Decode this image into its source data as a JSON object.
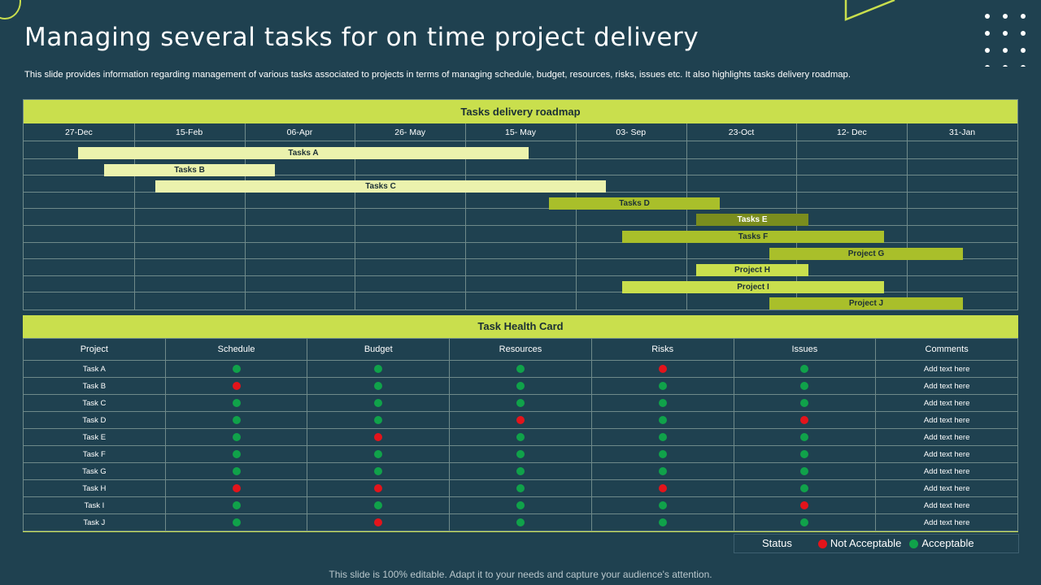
{
  "title": "Managing several tasks for on time project delivery",
  "subtitle": "This slide provides information regarding management of various tasks associated to projects in terms of managing schedule, budget, resources, risks, issues etc. It also highlights tasks delivery roadmap.",
  "roadmap": {
    "heading": "Tasks delivery roadmap",
    "dates": [
      "27-Dec",
      "15-Feb",
      "06-Apr",
      "26- May",
      "15- May",
      "03- Sep",
      "23-Oct",
      "12- Dec",
      "31-Jan"
    ],
    "tasks": [
      {
        "label": "Tasks A",
        "start_col": 0.49,
        "end_col": 4.57,
        "style": "light"
      },
      {
        "label": "Tasks B",
        "start_col": 0.73,
        "end_col": 2.28,
        "style": "light"
      },
      {
        "label": "Tasks C",
        "start_col": 1.19,
        "end_col": 5.27,
        "style": "light"
      },
      {
        "label": "Tasks D",
        "start_col": 4.76,
        "end_col": 6.31,
        "style": "mid"
      },
      {
        "label": "Tasks E",
        "start_col": 6.09,
        "end_col": 7.11,
        "style": "dark"
      },
      {
        "label": "Tasks F",
        "start_col": 5.42,
        "end_col": 7.79,
        "style": "mid"
      },
      {
        "label": "Project G",
        "start_col": 6.75,
        "end_col": 8.5,
        "style": "mid"
      },
      {
        "label": "Project H",
        "start_col": 6.09,
        "end_col": 7.11,
        "style": "lime"
      },
      {
        "label": "Project I",
        "start_col": 5.42,
        "end_col": 7.79,
        "style": "lime"
      },
      {
        "label": "Project J",
        "start_col": 6.75,
        "end_col": 8.5,
        "style": "mid"
      }
    ]
  },
  "health": {
    "heading": "Task Health Card",
    "columns": [
      "Project",
      "Schedule",
      "Budget",
      "Resources",
      "Risks",
      "Issues",
      "Comments"
    ],
    "rows": [
      {
        "name": "Task A",
        "status": [
          "g",
          "g",
          "g",
          "r",
          "g"
        ],
        "comment": "Add text here"
      },
      {
        "name": "Task B",
        "status": [
          "r",
          "g",
          "g",
          "g",
          "g"
        ],
        "comment": "Add text here"
      },
      {
        "name": "Task C",
        "status": [
          "g",
          "g",
          "g",
          "g",
          "g"
        ],
        "comment": "Add text here"
      },
      {
        "name": "Task D",
        "status": [
          "g",
          "g",
          "r",
          "g",
          "r"
        ],
        "comment": "Add text here"
      },
      {
        "name": "Task E",
        "status": [
          "g",
          "r",
          "g",
          "g",
          "g"
        ],
        "comment": "Add text here"
      },
      {
        "name": "Task F",
        "status": [
          "g",
          "g",
          "g",
          "g",
          "g"
        ],
        "comment": "Add text here"
      },
      {
        "name": "Task G",
        "status": [
          "g",
          "g",
          "g",
          "g",
          "g"
        ],
        "comment": "Add text here"
      },
      {
        "name": "Task H",
        "status": [
          "r",
          "r",
          "g",
          "r",
          "g"
        ],
        "comment": "Add text here"
      },
      {
        "name": "Task I",
        "status": [
          "g",
          "g",
          "g",
          "g",
          "r"
        ],
        "comment": "Add text here"
      },
      {
        "name": "Task J",
        "status": [
          "g",
          "r",
          "g",
          "g",
          "g"
        ],
        "comment": "Add text here"
      }
    ]
  },
  "legend": {
    "label": "Status",
    "not_acceptable": "Not Acceptable",
    "acceptable": "Acceptable"
  },
  "colors": {
    "background": "#1f4150",
    "accent": "#c9df4d",
    "acceptable": "#10a24a",
    "not_acceptable": "#e3141b"
  },
  "footer": "This slide is 100% editable. Adapt it to your needs and capture your audience's attention."
}
